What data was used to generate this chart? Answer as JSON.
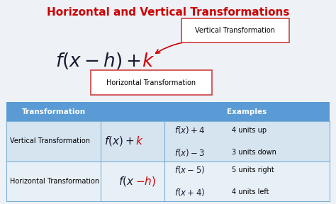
{
  "title": "Horizontal and Vertical Transformations",
  "title_color": "#cc0000",
  "bg_color": "#eef2f7",
  "vertical_label": "Vertical Transformation",
  "horizontal_label": "Horizontal Transformation",
  "table_header_bg": "#5b9bd5",
  "table_row1_bg": "#d6e4f0",
  "table_row2_bg": "#e8f0f7",
  "table_col1": "Transformation",
  "table_col2": "Examples",
  "row1_name": "Vertical Transformation",
  "row1_ex1_desc": "4 units up",
  "row1_ex2_desc": "3 units down",
  "row2_name": "Horizontal Transformation",
  "row2_ex1_desc": "5 units right",
  "row2_ex2_desc": "4 units left",
  "red_color": "#cc0000",
  "dark_color": "#1a1a2e",
  "box_border": "#d04040",
  "table_border": "#7aafd4",
  "white": "#ffffff"
}
